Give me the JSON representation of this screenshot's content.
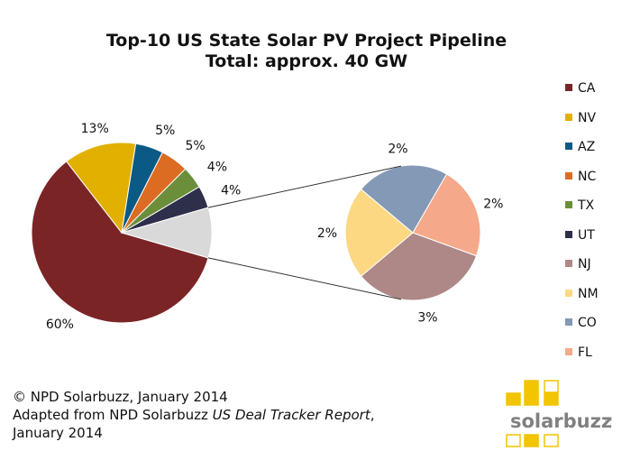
{
  "chart_data": {
    "type": "pie",
    "title": "Top-10 US State Solar PV Project Pipeline",
    "subtitle": "Total: approx. 40 GW",
    "main_pie": [
      {
        "name": "CA",
        "value": 60,
        "label": "60%",
        "color": "#7B2426"
      },
      {
        "name": "NV",
        "value": 13,
        "label": "13%",
        "color": "#E1B000"
      },
      {
        "name": "AZ",
        "value": 5,
        "label": "5%",
        "color": "#0B5A86"
      },
      {
        "name": "NC",
        "value": 5,
        "label": "5%",
        "color": "#DB6C22"
      },
      {
        "name": "TX",
        "value": 4,
        "label": "4%",
        "color": "#6B8E3A"
      },
      {
        "name": "UT",
        "value": 4,
        "label": "4%",
        "color": "#2E2F4B"
      },
      {
        "name": "Other",
        "value": 9,
        "label": "",
        "color": "#D9D9D9"
      }
    ],
    "exploded_pie": [
      {
        "name": "NJ",
        "value": 3,
        "label": "3%",
        "color": "#AD8886"
      },
      {
        "name": "NM",
        "value": 2,
        "label": "2%",
        "color": "#FDD882"
      },
      {
        "name": "CO",
        "value": 2,
        "label": "2%",
        "color": "#8399B5"
      },
      {
        "name": "FL",
        "value": 2,
        "label": "2%",
        "color": "#F6A98A"
      }
    ],
    "legend": [
      "CA",
      "NV",
      "AZ",
      "NC",
      "TX",
      "UT",
      "NJ",
      "NM",
      "CO",
      "FL"
    ],
    "legend_position": "right"
  },
  "footer": {
    "line1": "© NPD Solarbuzz, January 2014",
    "line2_prefix": "Adapted from NPD Solarbuzz ",
    "line2_italic": "US Deal Tracker Report",
    "line2_suffix": ",",
    "line3": "January 2014"
  },
  "logo": {
    "text": "solarbuzz",
    "tm": "TM",
    "square_color": "#F3C400"
  }
}
